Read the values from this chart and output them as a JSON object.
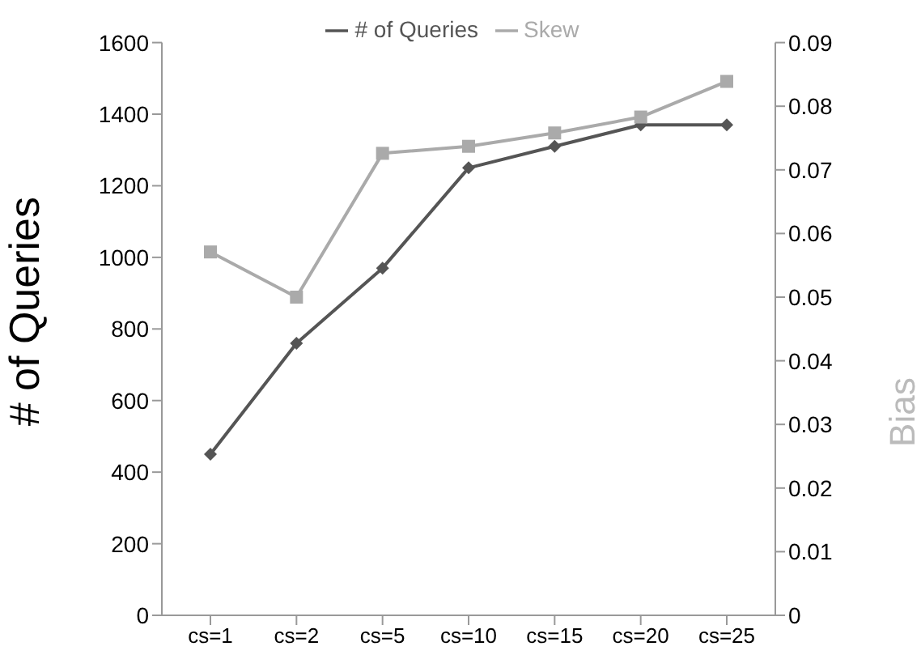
{
  "chart_data": {
    "type": "line",
    "categories": [
      "cs=1",
      "cs=2",
      "cs=5",
      "cs=10",
      "cs=15",
      "cs=20",
      "cs=25"
    ],
    "series": [
      {
        "name": "# of Queries",
        "color": "#555555",
        "marker": "diamond",
        "values": [
          450,
          760,
          970,
          1250,
          1310,
          1370,
          1370
        ]
      },
      {
        "name": "Skew",
        "color": "#aaaaaa",
        "marker": "square",
        "axis": "y2",
        "values": [
          0.0571,
          0.05,
          0.0726,
          0.0737,
          0.0758,
          0.0783,
          0.0839
        ]
      }
    ],
    "ylabel": "# of Queries",
    "y2label": "Bias",
    "ylim": [
      0,
      1600
    ],
    "yticks": [
      0,
      200,
      400,
      600,
      800,
      1000,
      1200,
      1400,
      1600
    ],
    "y2lim": [
      0,
      0.09
    ],
    "y2ticks": [
      0,
      0.01,
      0.02,
      0.03,
      0.04,
      0.05,
      0.06,
      0.07,
      0.08,
      0.09
    ],
    "grid": false,
    "legend": "top"
  }
}
